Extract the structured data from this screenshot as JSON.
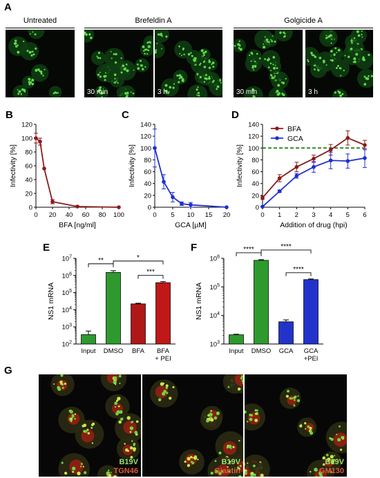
{
  "panel_a": {
    "letter": "A",
    "groups": [
      {
        "label": "Untreated"
      },
      {
        "label": "Brefeldin A"
      },
      {
        "label": "Golgicide A"
      }
    ],
    "time_labels": [
      "30 min",
      "3 h",
      "30 min",
      "3 h"
    ]
  },
  "panel_g": {
    "letter": "G",
    "panels": [
      {
        "green_label": "B19V",
        "red_label": "TGN46"
      },
      {
        "green_label": "B19V",
        "red_label": "Giantin"
      },
      {
        "green_label": "B19V",
        "red_label": "GM130"
      }
    ]
  },
  "colors": {
    "bfa": "#8b1a1a",
    "gca": "#1f2fd0",
    "reference": "#2e8b22",
    "bar_green": "#2e9a2e",
    "bar_darkred": "#b01818",
    "bar_red": "#c01818",
    "bar_blue": "#2233cc"
  },
  "chart_data": [
    {
      "id": "B",
      "letter": "B",
      "type": "line",
      "xlabel": "BFA [ng/ml]",
      "ylabel": "Infectivity [%]",
      "xlim": [
        0,
        100
      ],
      "ylim": [
        0,
        120
      ],
      "xticks": [
        0,
        20,
        40,
        60,
        80,
        100
      ],
      "yticks": [
        0,
        20,
        40,
        60,
        80,
        100,
        120
      ],
      "series": [
        {
          "x": [
            0,
            5,
            10,
            20,
            50,
            100
          ],
          "y": [
            100,
            95,
            56,
            8,
            1,
            0
          ],
          "err": [
            7,
            5,
            0,
            3,
            1,
            0
          ]
        }
      ]
    },
    {
      "id": "C",
      "letter": "C",
      "type": "line",
      "xlabel": "GCA [µM]",
      "ylabel": "Infectivity [%]",
      "xlim": [
        0,
        20
      ],
      "ylim": [
        0,
        140
      ],
      "xticks": [
        0,
        5,
        10,
        15,
        20
      ],
      "yticks": [
        0,
        20,
        40,
        60,
        80,
        100,
        120,
        140
      ],
      "series": [
        {
          "x": [
            0,
            2.5,
            5,
            7.5,
            10,
            20
          ],
          "y": [
            100,
            43,
            17,
            6,
            4,
            0
          ],
          "err": [
            32,
            12,
            8,
            3,
            4,
            0
          ]
        }
      ]
    },
    {
      "id": "D",
      "letter": "D",
      "type": "line",
      "xlabel": "Addition of drug (hpi)",
      "ylabel": "Infectivity [%]",
      "xlim": [
        0,
        6
      ],
      "ylim": [
        0,
        140
      ],
      "xticks": [
        0,
        1,
        2,
        3,
        4,
        5,
        6
      ],
      "yticks": [
        0,
        20,
        40,
        60,
        80,
        100,
        120,
        140
      ],
      "reference_line": 100,
      "legend_position": "top-left",
      "series": [
        {
          "name": "BFA",
          "x": [
            0,
            1,
            2,
            3,
            4,
            5,
            6
          ],
          "y": [
            16,
            49,
            68,
            82,
            97,
            117,
            105
          ],
          "err": [
            3,
            6,
            8,
            6,
            9,
            12,
            8
          ]
        },
        {
          "name": "GCA",
          "x": [
            0,
            1,
            2,
            3,
            4,
            5,
            6
          ],
          "y": [
            1,
            27,
            53,
            68,
            79,
            78,
            83
          ],
          "err": [
            1,
            2,
            4,
            9,
            14,
            12,
            16
          ]
        }
      ]
    },
    {
      "id": "E",
      "letter": "E",
      "type": "bar",
      "ylabel": "NS1 mRNA",
      "yscale": "log",
      "ylim_exp": [
        2,
        7
      ],
      "categories": [
        "Input",
        "DMSO",
        "BFA",
        "BFA\n+ PEI"
      ],
      "values": [
        350,
        1500000,
        22000,
        380000
      ],
      "err_up": [
        220,
        400000,
        2000,
        60000
      ],
      "significance": [
        {
          "from": 0,
          "to": 1,
          "label": "**"
        },
        {
          "from": 1,
          "to": 3,
          "label": "*"
        },
        {
          "from": 2,
          "to": 3,
          "label": "***"
        }
      ]
    },
    {
      "id": "F",
      "letter": "F",
      "type": "bar",
      "ylabel": "NS1 mRNA",
      "yscale": "log",
      "ylim_exp": [
        3,
        6
      ],
      "categories": [
        "Input",
        "DMSO",
        "GCA",
        "GCA\n+PEI"
      ],
      "values": [
        2100,
        850000,
        6000,
        180000
      ],
      "err_up": [
        100,
        50000,
        1000,
        10000
      ],
      "significance": [
        {
          "from": 0,
          "to": 1,
          "label": "****"
        },
        {
          "from": 1,
          "to": 3,
          "label": "****"
        },
        {
          "from": 2,
          "to": 3,
          "label": "****"
        }
      ]
    }
  ]
}
